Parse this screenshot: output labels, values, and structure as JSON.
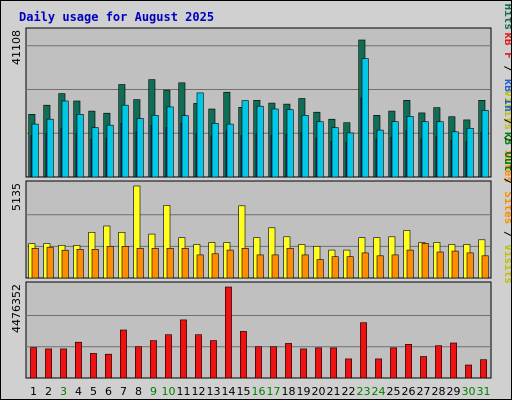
{
  "chart_data": {
    "type": "bar",
    "title": "Daily usage for August 2025",
    "categories": [
      "1",
      "2",
      "3",
      "4",
      "5",
      "6",
      "7",
      "8",
      "9",
      "10",
      "11",
      "12",
      "13",
      "14",
      "15",
      "16",
      "17",
      "18",
      "19",
      "20",
      "21",
      "22",
      "23",
      "24",
      "25",
      "26",
      "27",
      "28",
      "29",
      "30",
      "31"
    ],
    "weekend_days": [
      "3",
      "9",
      "10",
      "16",
      "17",
      "23",
      "24",
      "30",
      "31"
    ],
    "colors": {
      "title": "#0000c0",
      "weekday_label": "#000000",
      "weekend_label": "#008000",
      "plot_bg": "#c0c0c0",
      "grid": "#707070",
      "pages": "#00c8e8",
      "files": "#1a40c0",
      "hits": "#0f6e55",
      "visits": "#ffff20",
      "sites": "#ff8c00",
      "kbin": "#2060d0",
      "kbout": "#008000",
      "kbf": "#ee1111"
    },
    "panels": [
      {
        "name": "hits-panel",
        "ytick_label": "41108",
        "ymax": 41108,
        "legend": [
          {
            "text": "Pages",
            "color": "#00c0e0"
          },
          {
            "text": " / ",
            "color": "#000000"
          },
          {
            "text": "Files",
            "color": "#1a40c0"
          },
          {
            "text": " / ",
            "color": "#000000"
          },
          {
            "text": "Hits",
            "color": "#0f6e55"
          }
        ],
        "series": [
          {
            "name": "Hits",
            "color": "#0f6e55",
            "values": [
              17900,
              20500,
              23800,
              21700,
              18800,
              18200,
              26400,
              22100,
              27800,
              24800,
              26900,
              21000,
              19400,
              24200,
              19900,
              21900,
              21100,
              20800,
              22400,
              18500,
              16500,
              15500,
              39100,
              17600,
              18800,
              21900,
              18300,
              19800,
              17200,
              16300,
              21900
            ]
          },
          {
            "name": "Files",
            "color": "#1a40c0",
            "values": [
              11800,
              12500,
              13800,
              12400,
              10800,
              11100,
              15300,
              12900,
              14700,
              14100,
              15300,
              12300,
              11700,
              13200,
              11800,
              12300,
              11800,
              12200,
              12700,
              11100,
              10200,
              9900,
              22600,
              10800,
              11400,
              13200,
              10900,
              11500,
              10500,
              10100,
              12800
            ]
          },
          {
            "name": "Pages",
            "color": "#00c8e8",
            "values": [
              15100,
              16500,
              21700,
              17900,
              14100,
              14800,
              20500,
              16700,
              17600,
              20000,
              17500,
              24000,
              15300,
              15100,
              21800,
              20200,
              19400,
              19200,
              17600,
              15800,
              14100,
              12600,
              33800,
              13400,
              15800,
              17300,
              15800,
              15800,
              12900,
              13900,
              19000
            ]
          }
        ]
      },
      {
        "name": "visits-panel",
        "ytick_label": "5135",
        "ymax": 5135,
        "legend": [
          {
            "text": "Visits",
            "color": "#c0c000"
          },
          {
            "text": " / ",
            "color": "#000000"
          },
          {
            "text": "Sites",
            "color": "#ff8c00"
          }
        ],
        "series": [
          {
            "name": "Visits",
            "color": "#ffff20",
            "values": [
              1920,
              1920,
              1820,
              1820,
              2550,
              2900,
              2550,
              5135,
              2450,
              4050,
              2250,
              1870,
              1980,
              1980,
              4030,
              2250,
              2800,
              2300,
              1870,
              1770,
              1560,
              1560,
              2250,
              2250,
              2300,
              2650,
              1980,
              1980,
              1870,
              1870,
              2130
            ]
          },
          {
            "name": "Sites",
            "color": "#ff8c00",
            "values": [
              1660,
              1720,
              1550,
              1600,
              1600,
              1770,
              1770,
              1660,
              1660,
              1660,
              1660,
              1290,
              1350,
              1560,
              1660,
              1290,
              1290,
              1660,
              1290,
              1030,
              1190,
              1190,
              1400,
              1240,
              1290,
              1560,
              1930,
              1450,
              1500,
              1400,
              1240
            ]
          }
        ]
      },
      {
        "name": "kbytes-panel",
        "ytick_label": "4476352",
        "ymax": 4476352,
        "legend": [
          {
            "text": "kB F",
            "color": "#ee1111"
          },
          {
            "text": " / ",
            "color": "#000000"
          },
          {
            "text": "kB In",
            "color": "#2060d0"
          },
          {
            "text": " / ",
            "color": "#000000"
          },
          {
            "text": "kB Out",
            "color": "#008000"
          },
          {
            "text": " / ",
            "color": "#000000"
          },
          {
            "text": "Sites",
            "color": "#ff8c00"
          },
          {
            "text": " / ",
            "color": "#000000"
          },
          {
            "text": "Visits",
            "color": "#c0c000"
          }
        ],
        "series": [
          {
            "name": "kB F",
            "color": "#ee1111",
            "values": [
              1490000,
              1430000,
              1430000,
              1760000,
              1210000,
              1170000,
              2360000,
              1540000,
              1840000,
              2130000,
              2860000,
              2130000,
              1840000,
              4476352,
              2290000,
              1540000,
              1540000,
              1700000,
              1430000,
              1480000,
              1480000,
              940000,
              2720000,
              940000,
              1480000,
              1660000,
              1060000,
              1590000,
              1720000,
              640000,
              900000
            ]
          }
        ]
      }
    ]
  }
}
